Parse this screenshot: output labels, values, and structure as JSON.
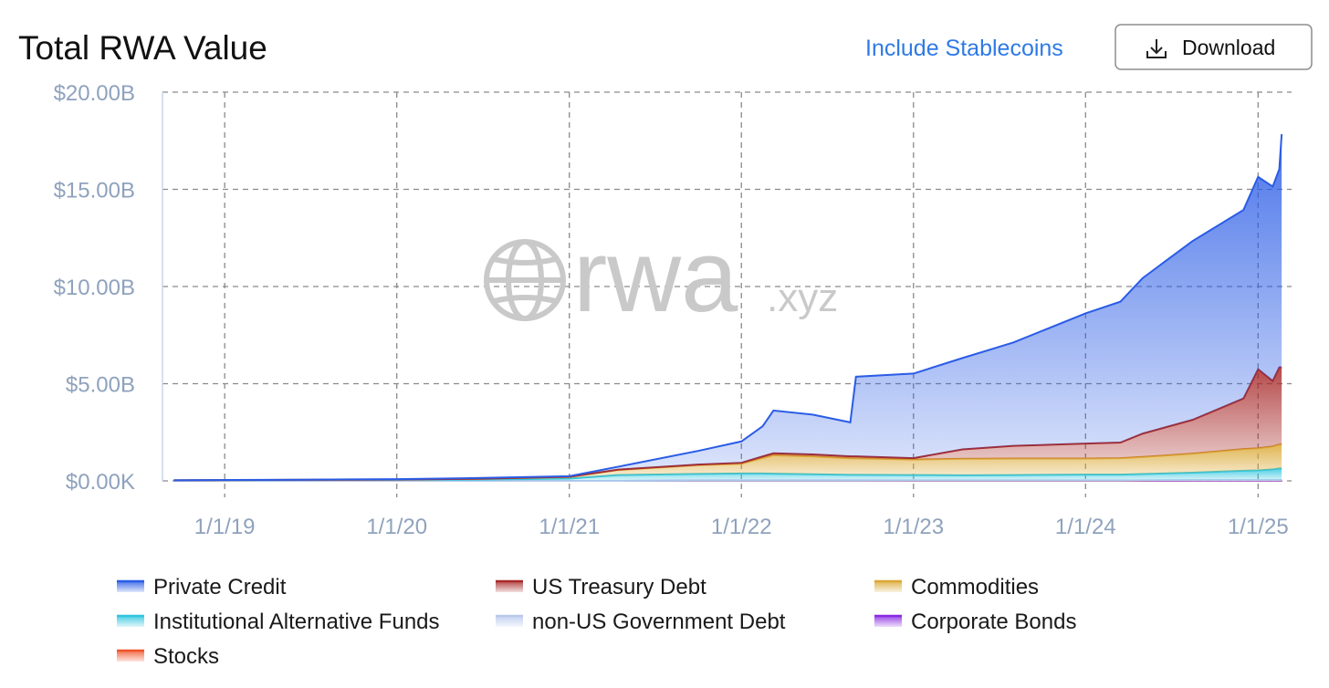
{
  "chart_data": {
    "type": "stacked-area",
    "title": "Total RWA Value",
    "x": [
      "2018-09-15",
      "2019-06-01",
      "2020-01-01",
      "2020-07-01",
      "2021-01-01",
      "2021-04-15",
      "2021-10-01",
      "2022-01-01",
      "2022-02-15",
      "2022-03-10",
      "2022-06-01",
      "2022-08-20",
      "2022-09-01",
      "2023-01-01",
      "2023-04-15",
      "2023-08-01",
      "2024-01-01",
      "2024-03-15",
      "2024-05-01",
      "2024-08-15",
      "2024-12-01",
      "2025-01-01",
      "2025-02-01",
      "2025-02-15",
      "2025-02-20"
    ],
    "series": [
      {
        "name": "Private Credit",
        "color": "#2a5ce6",
        "values": [
          0,
          0.01,
          0.02,
          0.04,
          0.03,
          0.15,
          0.7,
          1.1,
          1.55,
          2.2,
          2.05,
          1.75,
          4.1,
          4.35,
          4.7,
          5.32,
          6.7,
          7.25,
          8.0,
          9.2,
          9.7,
          9.9,
          10.0,
          10.2,
          12.0
        ]
      },
      {
        "name": "US Treasury Debt",
        "color": "#a82a2a",
        "values": [
          0,
          0,
          0,
          0,
          0.01,
          0.02,
          0.03,
          0.05,
          0.08,
          0.1,
          0.1,
          0.1,
          0.1,
          0.07,
          0.48,
          0.65,
          0.77,
          0.8,
          1.2,
          1.74,
          2.6,
          4.06,
          3.37,
          3.97,
          3.97
        ]
      },
      {
        "name": "Commodities",
        "color": "#dba834",
        "values": [
          0,
          0.01,
          0.02,
          0.04,
          0.08,
          0.26,
          0.45,
          0.5,
          0.8,
          0.95,
          0.92,
          0.85,
          0.85,
          0.8,
          0.85,
          0.85,
          0.83,
          0.85,
          0.88,
          0.98,
          1.12,
          1.14,
          1.18,
          1.23,
          1.23
        ]
      },
      {
        "name": "Institutional Alternative Funds",
        "color": "#2fc6de",
        "values": [
          0.03,
          0.04,
          0.05,
          0.07,
          0.12,
          0.3,
          0.35,
          0.37,
          0.37,
          0.36,
          0.33,
          0.3,
          0.3,
          0.28,
          0.27,
          0.28,
          0.3,
          0.3,
          0.32,
          0.38,
          0.48,
          0.5,
          0.55,
          0.6,
          0.6
        ]
      },
      {
        "name": "non-US Government Debt",
        "color": "#b9c9ec",
        "values": [
          0,
          0,
          0,
          0,
          0,
          0,
          0,
          0,
          0,
          0,
          0,
          0,
          0,
          0.01,
          0.01,
          0.01,
          0.01,
          0.01,
          0.02,
          0.02,
          0.02,
          0.02,
          0.02,
          0.02,
          0.02
        ]
      },
      {
        "name": "Corporate Bonds",
        "color": "#8a2be2",
        "values": [
          0,
          0,
          0,
          0,
          0,
          0,
          0.01,
          0.01,
          0.01,
          0.01,
          0.01,
          0.01,
          0.01,
          0.01,
          0.01,
          0.01,
          0.01,
          0.01,
          0.01,
          0.01,
          0.01,
          0.01,
          0.01,
          0.01,
          0.01
        ]
      },
      {
        "name": "Stocks",
        "color": "#f0552c",
        "values": [
          0,
          0,
          0,
          0,
          0,
          0,
          0,
          0,
          0,
          0,
          0,
          0,
          0,
          0,
          0,
          0,
          0,
          0,
          0,
          0.01,
          0.01,
          0.01,
          0.01,
          0.01,
          0.01
        ]
      }
    ],
    "xlim": [
      "2018-08-22",
      "2025-03-13"
    ],
    "xticks": [
      {
        "value": "2019-01-01",
        "label": "1/1/19"
      },
      {
        "value": "2020-01-01",
        "label": "1/1/20"
      },
      {
        "value": "2021-01-01",
        "label": "1/1/21"
      },
      {
        "value": "2022-01-01",
        "label": "1/1/22"
      },
      {
        "value": "2023-01-01",
        "label": "1/1/23"
      },
      {
        "value": "2024-01-01",
        "label": "1/1/24"
      },
      {
        "value": "2025-01-01",
        "label": "1/1/25"
      }
    ],
    "ylim": [
      0,
      20
    ],
    "yticks": [
      {
        "value": 0,
        "label": "$0.00K"
      },
      {
        "value": 5,
        "label": "$5.00B"
      },
      {
        "value": 10,
        "label": "$10.00B"
      },
      {
        "value": 15,
        "label": "$15.00B"
      },
      {
        "value": 20,
        "label": "$20.00B"
      }
    ],
    "grid": true
  },
  "controls": {
    "toggle": "Include Stablecoins",
    "download": "Download"
  },
  "watermark": {
    "text": "rwa",
    "suffix": ".xyz"
  }
}
